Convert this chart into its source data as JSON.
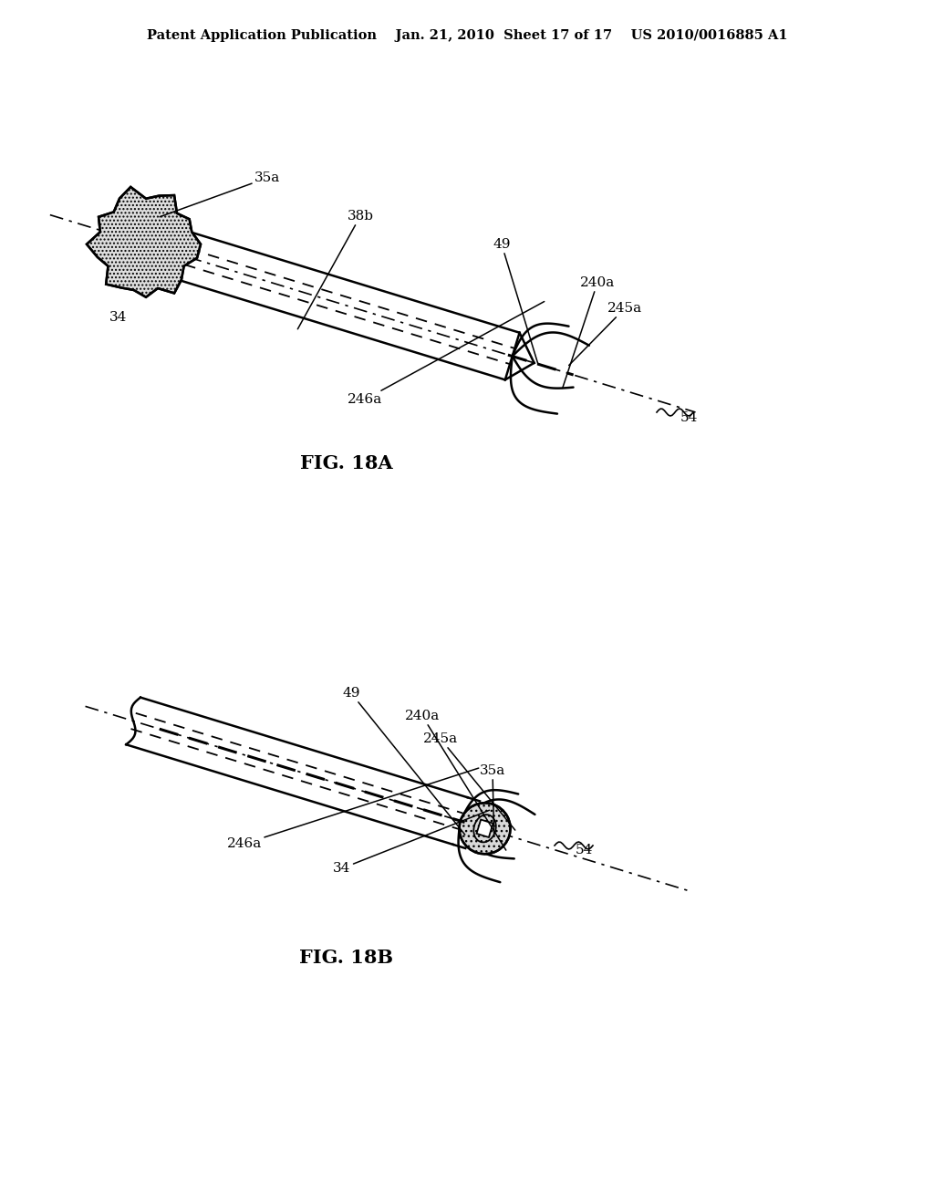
{
  "bg_color": "#ffffff",
  "header_text": "Patent Application Publication    Jan. 21, 2010  Sheet 17 of 17    US 2010/0016885 A1",
  "fig18a_label": "FIG. 18A",
  "fig18b_label": "FIG. 18B",
  "text_color": "#000000",
  "line_color": "#000000"
}
